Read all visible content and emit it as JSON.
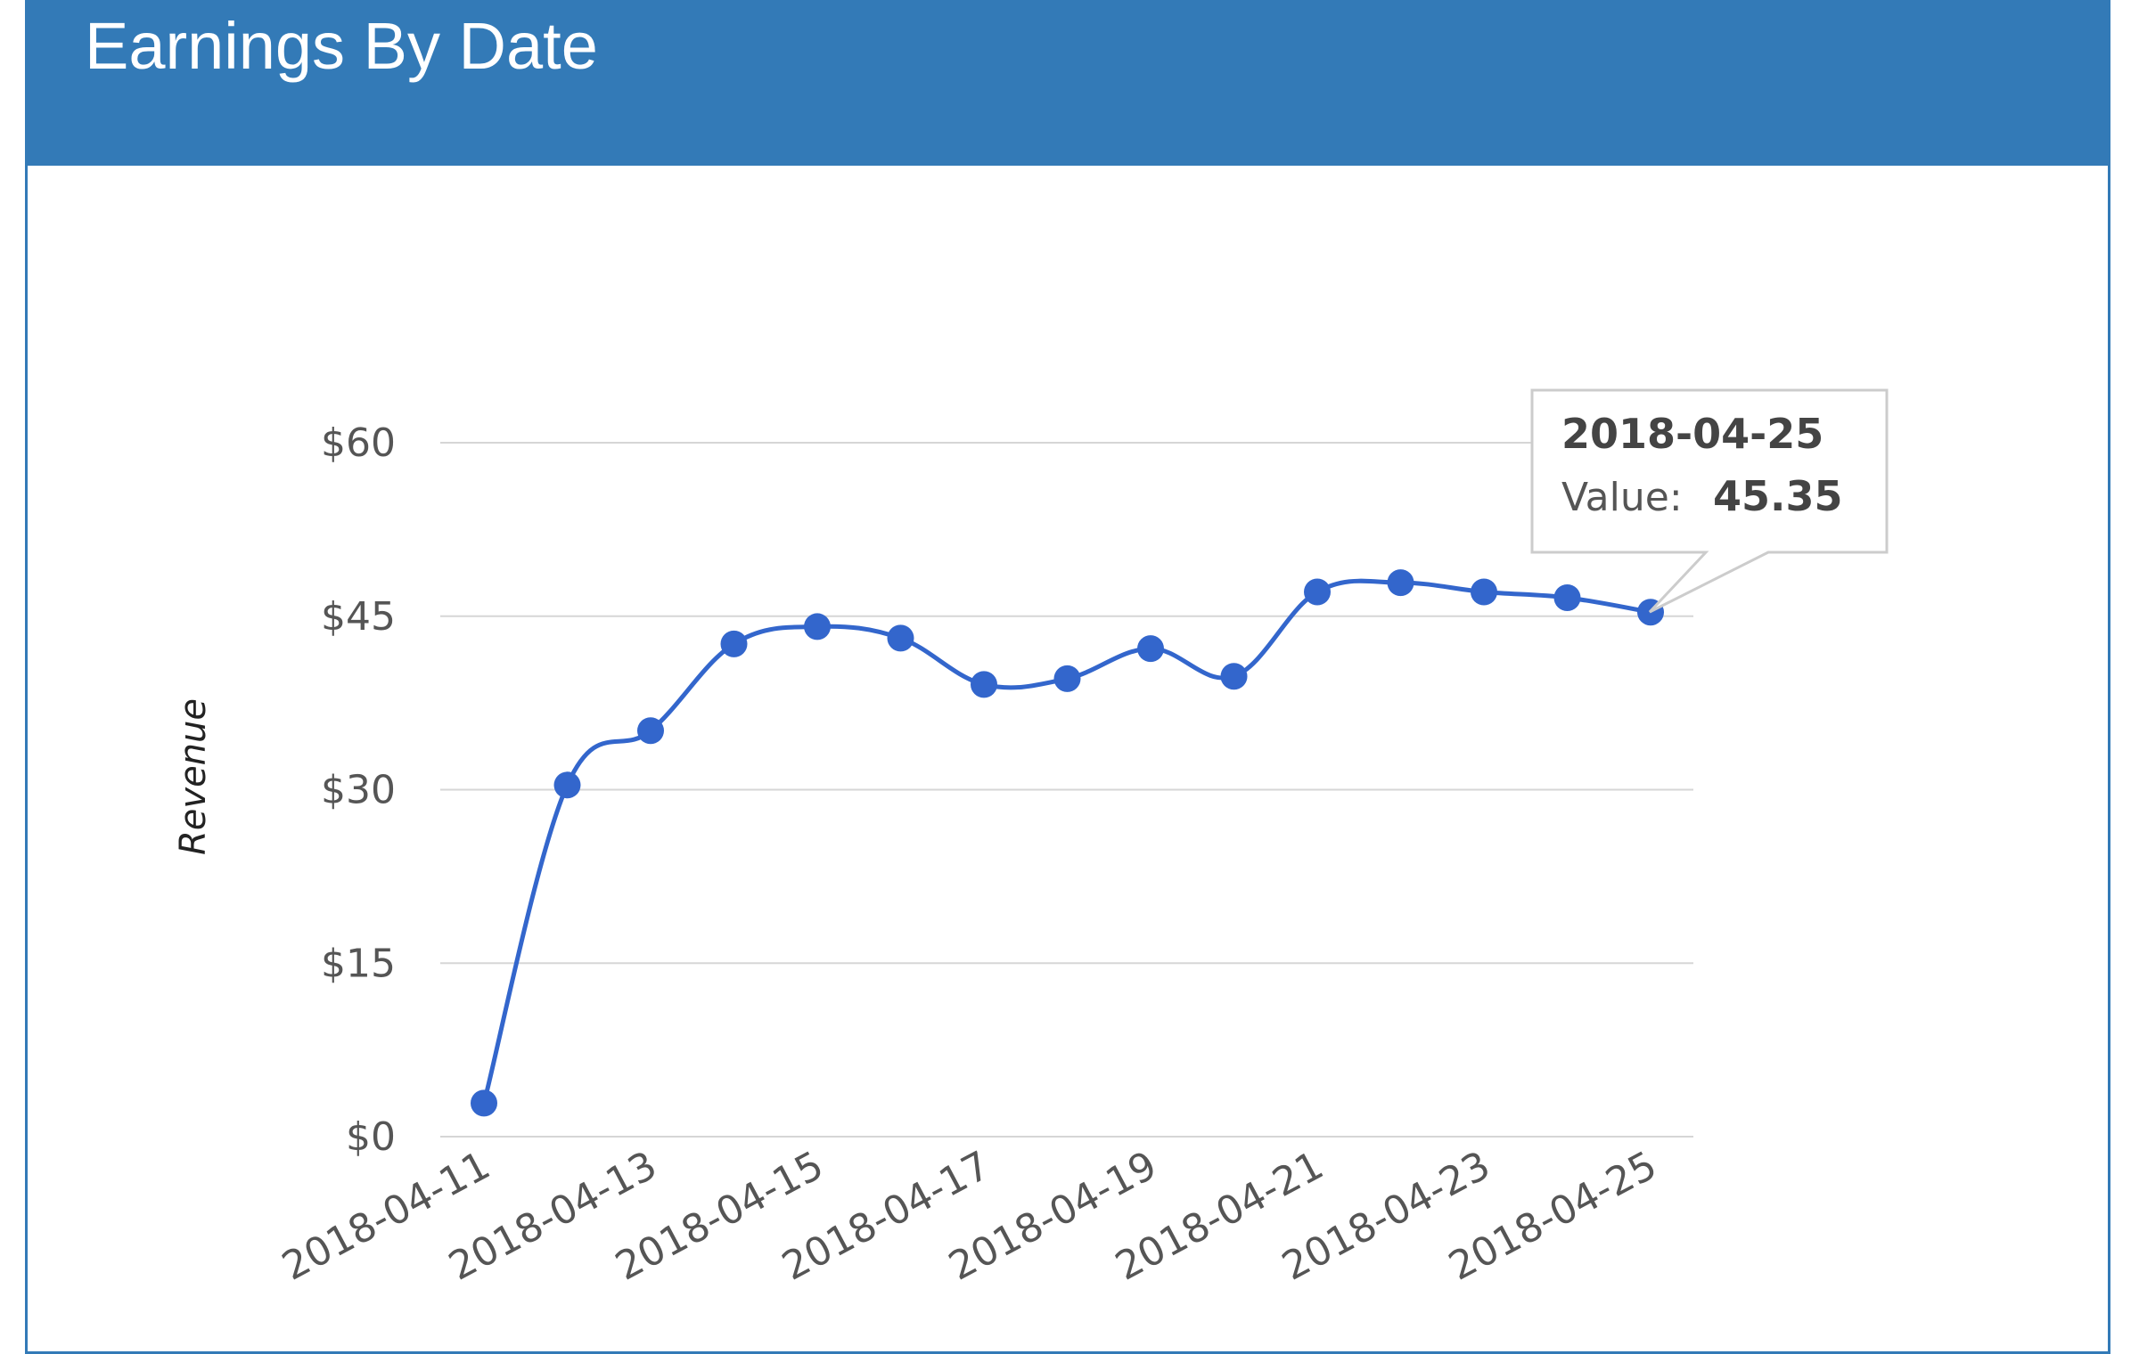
{
  "panel": {
    "title": "Earnings By Date"
  },
  "chart_data": {
    "type": "line",
    "title": "",
    "xlabel": "",
    "ylabel": "Revenue",
    "ylim": [
      0,
      60
    ],
    "y_ticks": [
      0,
      15,
      30,
      45,
      60
    ],
    "y_tick_labels": [
      "$0",
      "$15",
      "$30",
      "$45",
      "$60"
    ],
    "x_tick_labels": [
      "2018-04-11",
      "2018-04-13",
      "2018-04-15",
      "2018-04-17",
      "2018-04-19",
      "2018-04-21",
      "2018-04-23",
      "2018-04-25"
    ],
    "grid": true,
    "legend": "none",
    "line_color": "#3366cc",
    "x": [
      "2018-04-11",
      "2018-04-12",
      "2018-04-13",
      "2018-04-14",
      "2018-04-15",
      "2018-04-16",
      "2018-04-17",
      "2018-04-18",
      "2018-04-19",
      "2018-04-20",
      "2018-04-21",
      "2018-04-22",
      "2018-04-23",
      "2018-04-24",
      "2018-04-25"
    ],
    "series": [
      {
        "values": [
          2.9,
          30.4,
          35.1,
          42.6,
          44.1,
          43.1,
          39.1,
          39.6,
          42.2,
          39.8,
          47.1,
          47.9,
          47.1,
          46.6,
          45.35
        ]
      }
    ],
    "tooltip": {
      "date": "2018-04-25",
      "label": "Value:",
      "value": "45.35"
    }
  }
}
